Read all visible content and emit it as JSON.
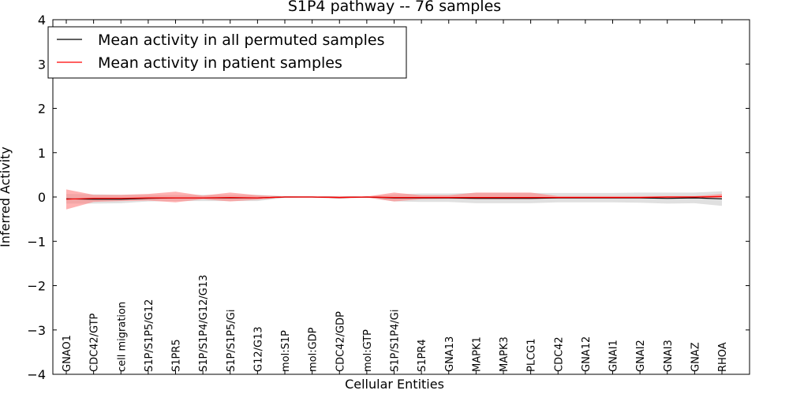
{
  "chart_data": {
    "type": "line",
    "title": "S1P4 pathway -- 76 samples",
    "xlabel": "Cellular Entities",
    "ylabel": "Inferred Activity",
    "ylim": [
      -4,
      4
    ],
    "yticks": [
      -4,
      -3,
      -2,
      -1,
      0,
      1,
      2,
      3,
      4
    ],
    "ytick_labels": [
      "−4",
      "−3",
      "−2",
      "−1",
      "0",
      "1",
      "2",
      "3",
      "4"
    ],
    "legend_position": "top-left",
    "categories": [
      "GNAO1",
      "CDC42/GTP",
      "cell migration",
      "S1P/S1P5/G12",
      "S1PR5",
      "S1P/S1P4/G12/G13",
      "S1P/S1P5/Gi",
      "G12/G13",
      "mol:S1P",
      "mol:GDP",
      "CDC42/GDP",
      "mol:GTP",
      "S1P/S1P4/Gi",
      "S1PR4",
      "GNA13",
      "MAPK1",
      "MAPK3",
      "PLCG1",
      "CDC42",
      "GNA12",
      "GNAI1",
      "GNAI2",
      "GNAI3",
      "GNAZ",
      "RHOA"
    ],
    "series": [
      {
        "name": "Mean activity in all permuted samples",
        "color": "#000000",
        "band_color": "#bbbbbb",
        "values": [
          -0.04,
          -0.05,
          -0.05,
          -0.03,
          -0.02,
          -0.02,
          -0.02,
          -0.02,
          0.0,
          0.0,
          -0.01,
          0.0,
          -0.02,
          -0.02,
          -0.02,
          -0.03,
          -0.03,
          -0.03,
          -0.02,
          -0.02,
          -0.02,
          -0.02,
          -0.03,
          -0.02,
          -0.04
        ],
        "lower": [
          -0.15,
          -0.15,
          -0.14,
          -0.1,
          -0.09,
          -0.09,
          -0.09,
          -0.09,
          -0.02,
          -0.01,
          -0.04,
          -0.01,
          -0.1,
          -0.11,
          -0.11,
          -0.14,
          -0.14,
          -0.14,
          -0.12,
          -0.12,
          -0.12,
          -0.13,
          -0.15,
          -0.14,
          -0.2
        ],
        "upper": [
          0.07,
          0.06,
          0.05,
          0.05,
          0.05,
          0.05,
          0.05,
          0.05,
          0.02,
          0.01,
          0.02,
          0.01,
          0.06,
          0.08,
          0.08,
          0.09,
          0.09,
          0.09,
          0.09,
          0.09,
          0.09,
          0.1,
          0.1,
          0.1,
          0.13
        ]
      },
      {
        "name": "Mean activity in patient samples",
        "color": "#ff0000",
        "band_color": "#ff7f7f",
        "values": [
          -0.05,
          -0.03,
          -0.03,
          -0.02,
          -0.02,
          -0.02,
          -0.01,
          -0.02,
          0.0,
          0.0,
          -0.01,
          0.0,
          -0.01,
          -0.01,
          -0.01,
          -0.01,
          -0.01,
          -0.01,
          -0.01,
          -0.01,
          -0.01,
          -0.01,
          0.0,
          0.0,
          0.01
        ],
        "lower": [
          -0.28,
          -0.11,
          -0.09,
          -0.08,
          -0.12,
          -0.05,
          -0.1,
          -0.06,
          -0.01,
          -0.01,
          -0.03,
          -0.01,
          -0.1,
          -0.05,
          -0.04,
          -0.05,
          -0.05,
          -0.05,
          -0.03,
          -0.03,
          -0.03,
          -0.03,
          -0.03,
          -0.02,
          -0.02
        ],
        "upper": [
          0.17,
          0.05,
          0.05,
          0.07,
          0.12,
          0.03,
          0.1,
          0.04,
          0.01,
          0.01,
          0.02,
          0.01,
          0.1,
          0.04,
          0.04,
          0.1,
          0.1,
          0.1,
          0.02,
          0.02,
          0.02,
          0.02,
          0.02,
          0.02,
          0.07
        ]
      }
    ]
  }
}
